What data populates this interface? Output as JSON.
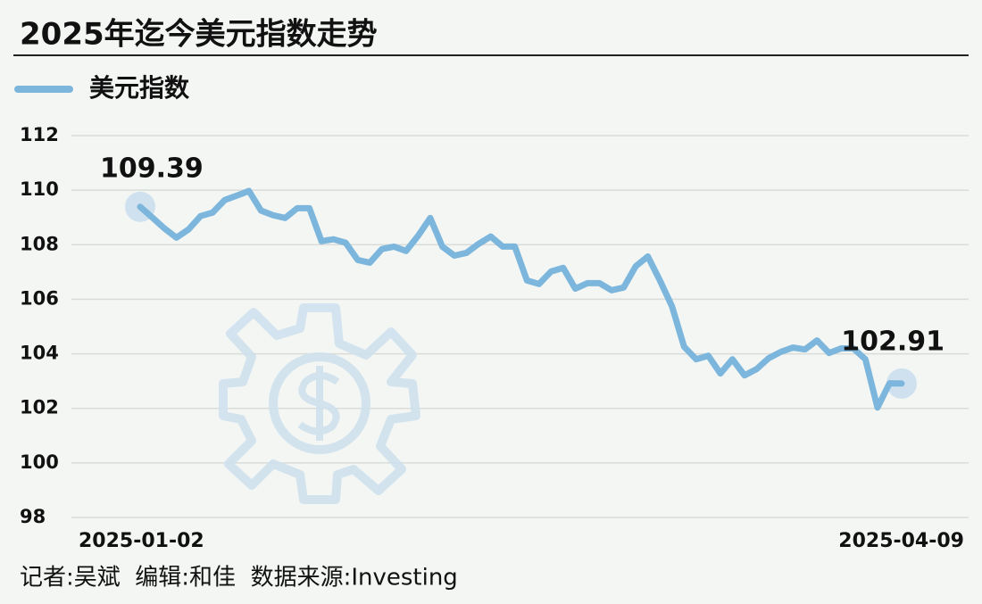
{
  "chart_data": {
    "type": "line",
    "title": "2025年迄今美元指数走势",
    "categories": [
      "2025-01-02",
      null,
      null,
      null,
      null,
      null,
      null,
      null,
      null,
      null,
      null,
      null,
      null,
      null,
      null,
      null,
      null,
      null,
      null,
      null,
      null,
      null,
      null,
      null,
      null,
      null,
      null,
      null,
      null,
      null,
      null,
      null,
      null,
      null,
      null,
      null,
      null,
      null,
      null,
      null,
      null,
      null,
      null,
      null,
      null,
      null,
      null,
      null,
      null,
      null,
      null,
      null,
      null,
      null,
      null,
      null,
      null,
      null,
      null,
      null,
      null,
      null,
      null,
      "2025-04-09"
    ],
    "series": [
      {
        "name": "美元指数",
        "color": "#7db6dc",
        "values": [
          109.39,
          109.0,
          108.6,
          108.26,
          108.56,
          109.05,
          109.18,
          109.64,
          109.8,
          109.97,
          109.25,
          109.08,
          108.98,
          109.34,
          109.34,
          108.13,
          108.2,
          108.07,
          107.44,
          107.34,
          107.84,
          107.93,
          107.77,
          108.33,
          108.98,
          107.93,
          107.6,
          107.7,
          108.03,
          108.3,
          107.93,
          107.93,
          106.69,
          106.56,
          107.02,
          107.15,
          106.39,
          106.59,
          106.59,
          106.33,
          106.43,
          107.21,
          107.57,
          106.69,
          105.74,
          104.26,
          103.8,
          103.93,
          103.28,
          103.8,
          103.21,
          103.44,
          103.84,
          104.07,
          104.23,
          104.16,
          104.49,
          104.03,
          104.2,
          104.2,
          103.8,
          102.03,
          102.92,
          102.91
        ]
      }
    ],
    "ylim": [
      98,
      112
    ],
    "yticks": [
      98,
      100,
      102,
      104,
      106,
      108,
      110,
      112
    ],
    "grid": true,
    "source": "记者:吴斌  编辑:和佳  数据来源:Investing"
  }
}
